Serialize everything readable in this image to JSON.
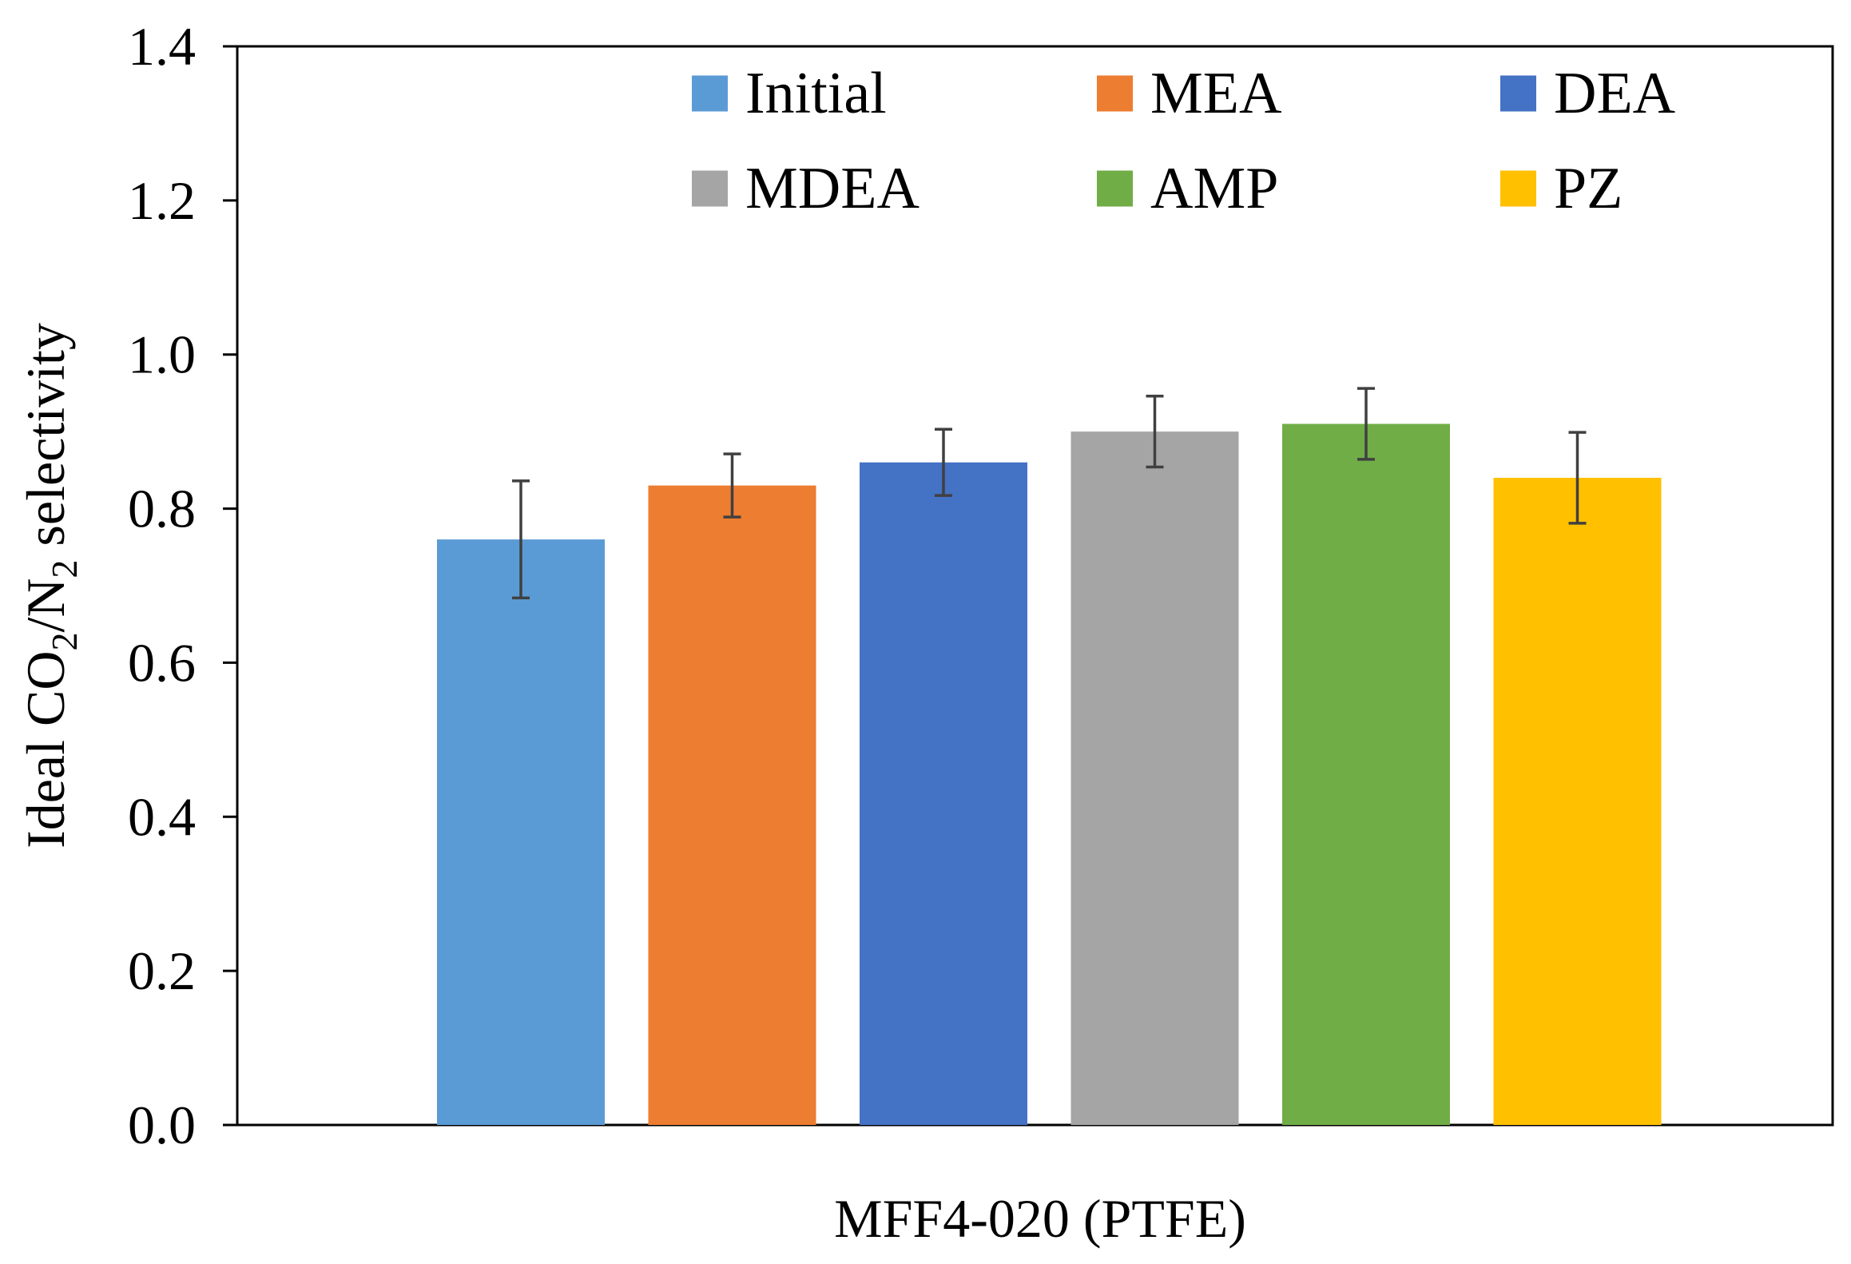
{
  "chart_data": {
    "type": "bar",
    "title": "",
    "xlabel": "MFF4-020 (PTFE)",
    "ylabel": {
      "prefix": "Ideal CO",
      "sub1": "2",
      "middle": "/N",
      "sub2": "2",
      "suffix": " selectivity"
    },
    "ylim": [
      0.0,
      1.4
    ],
    "yticks": [
      "0.0",
      "0.2",
      "0.4",
      "0.6",
      "0.8",
      "1.0",
      "1.2",
      "1.4"
    ],
    "grid": false,
    "legend_position": "top-center",
    "category": "MFF4-020 (PTFE)",
    "series": [
      {
        "name": "Initial",
        "value": 0.76,
        "error": 0.076,
        "color": "#5B9BD5"
      },
      {
        "name": "MEA",
        "value": 0.83,
        "error": 0.041,
        "color": "#ED7D31"
      },
      {
        "name": "DEA",
        "value": 0.86,
        "error": 0.043,
        "color": "#4472C4"
      },
      {
        "name": "MDEA",
        "value": 0.9,
        "error": 0.046,
        "color": "#A5A5A5"
      },
      {
        "name": "AMP",
        "value": 0.91,
        "error": 0.046,
        "color": "#70AD47"
      },
      {
        "name": "PZ",
        "value": 0.84,
        "error": 0.059,
        "color": "#FFC000"
      }
    ]
  }
}
